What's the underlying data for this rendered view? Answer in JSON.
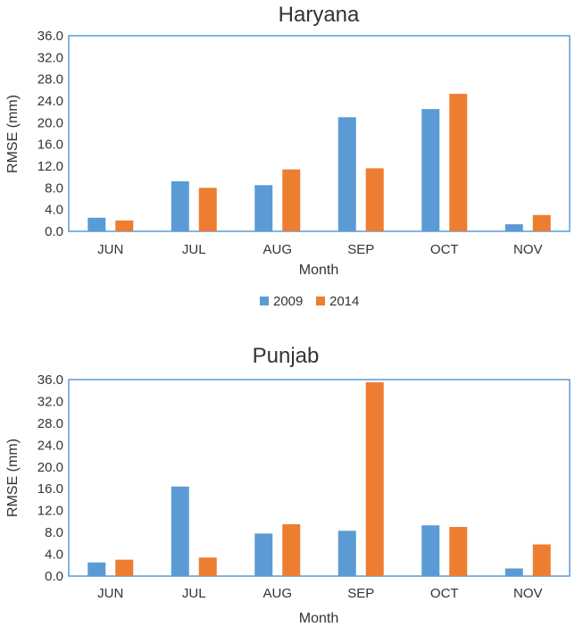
{
  "chart_data": [
    {
      "type": "bar",
      "title": "Haryana",
      "xlabel": "Month",
      "ylabel": "RMSE  (mm)",
      "ylim": [
        0,
        36
      ],
      "yticks": [
        "0.0",
        "4.0",
        "8.0",
        "12.0",
        "16.0",
        "20.0",
        "24.0",
        "28.0",
        "32.0",
        "36.0"
      ],
      "categories": [
        "JUN",
        "JUL",
        "AUG",
        "SEP",
        "OCT",
        "NOV"
      ],
      "series": [
        {
          "name": "2009",
          "color": "#5B9BD5",
          "values": [
            2.5,
            9.2,
            8.5,
            21.0,
            22.5,
            1.3
          ]
        },
        {
          "name": "2014",
          "color": "#ED7D31",
          "values": [
            2.0,
            8.0,
            11.4,
            11.6,
            25.3,
            3.0
          ]
        }
      ],
      "legend": "bottom"
    },
    {
      "type": "bar",
      "title": "Punjab",
      "xlabel": "Month",
      "ylabel": "RMSE  (mm)",
      "ylim": [
        0,
        36
      ],
      "yticks": [
        "0.0",
        "4.0",
        "8.0",
        "12.0",
        "16.0",
        "20.0",
        "24.0",
        "28.0",
        "32.0",
        "36.0"
      ],
      "categories": [
        "JUN",
        "JUL",
        "AUG",
        "SEP",
        "OCT",
        "NOV"
      ],
      "series": [
        {
          "name": "2009",
          "color": "#5B9BD5",
          "values": [
            2.5,
            16.4,
            7.8,
            8.3,
            9.3,
            1.4
          ]
        },
        {
          "name": "2014",
          "color": "#ED7D31",
          "values": [
            3.0,
            3.4,
            9.5,
            35.5,
            9.0,
            5.8
          ]
        }
      ],
      "legend": "none"
    }
  ]
}
